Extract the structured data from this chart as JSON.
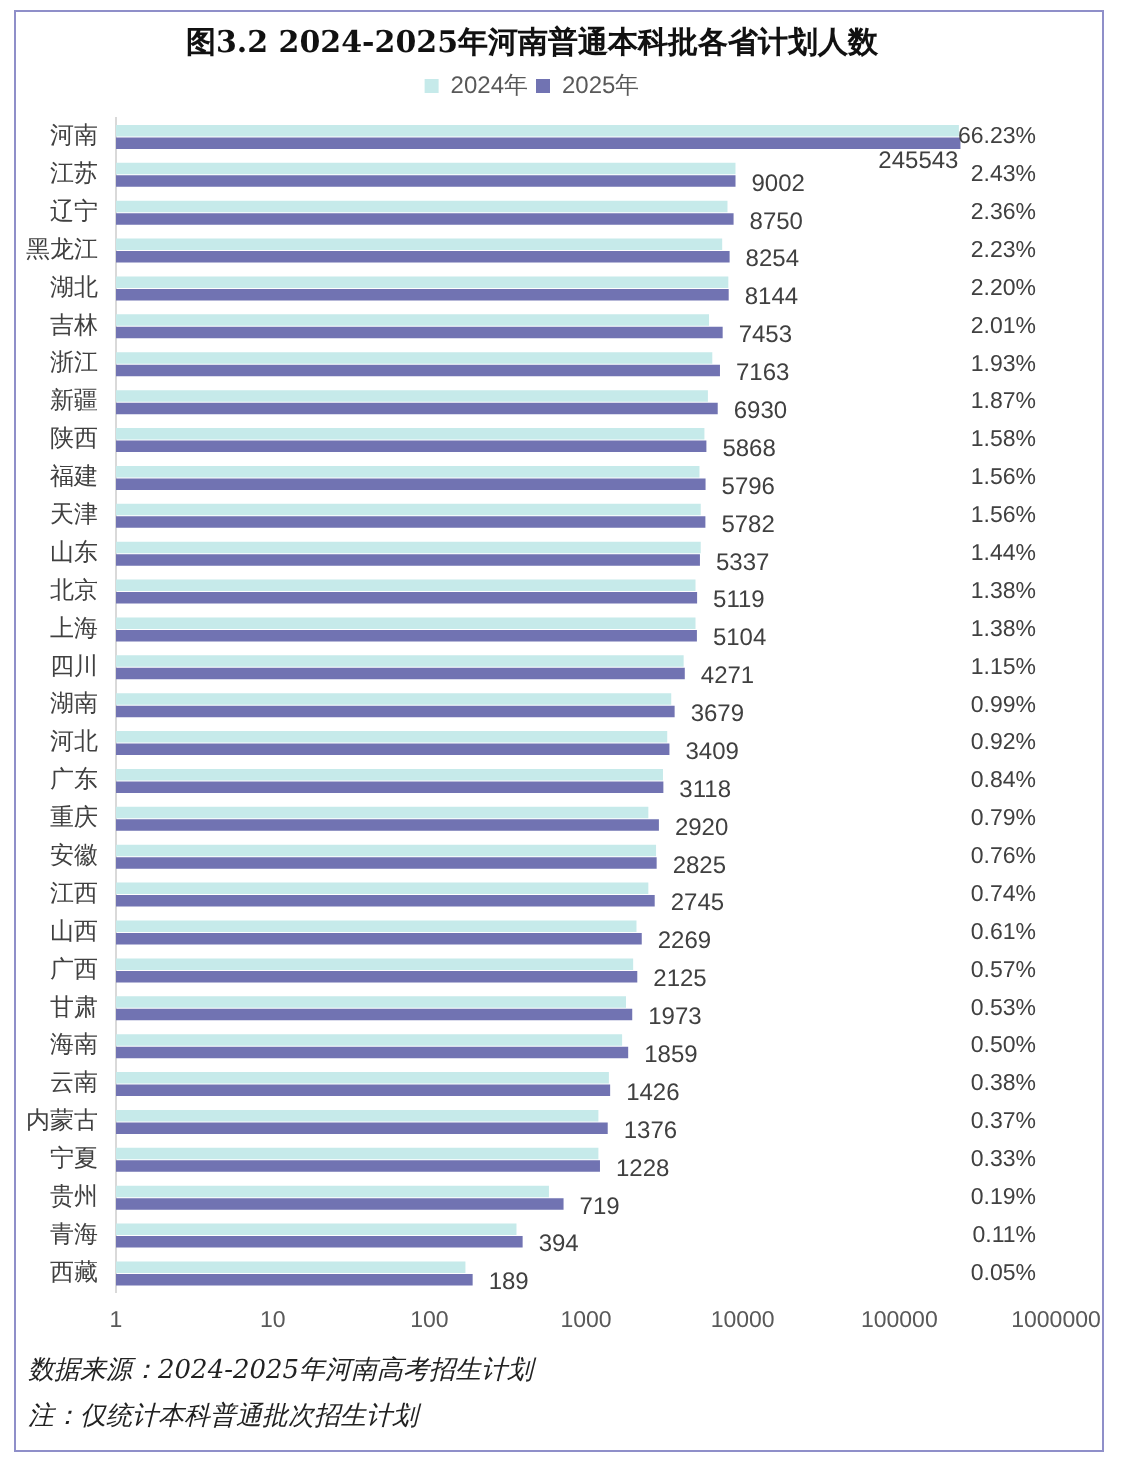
{
  "chart_data": {
    "type": "bar",
    "orientation": "horizontal",
    "title": "图3.2 2024-2025年河南普通本科批各省计划人数",
    "categories": [
      "河南",
      "江苏",
      "辽宁",
      "黑龙江",
      "湖北",
      "吉林",
      "浙江",
      "新疆",
      "陕西",
      "福建",
      "天津",
      "山东",
      "北京",
      "上海",
      "四川",
      "湖南",
      "河北",
      "广东",
      "重庆",
      "安徽",
      "江西",
      "山西",
      "广西",
      "甘肃",
      "海南",
      "云南",
      "内蒙古",
      "宁夏",
      "贵州",
      "青海",
      "西藏"
    ],
    "series": [
      {
        "name": "2024年",
        "color": "#c6eaea",
        "values": [
          240000,
          9000,
          8000,
          7400,
          8100,
          6100,
          6400,
          6000,
          5700,
          5300,
          5400,
          5400,
          5000,
          5000,
          4200,
          3500,
          3300,
          3100,
          2500,
          2800,
          2500,
          2100,
          2000,
          1800,
          1700,
          1400,
          1200,
          1200,
          580,
          360,
          170
        ]
      },
      {
        "name": "2025年",
        "color": "#7173b2",
        "values": [
          245543,
          9002,
          8750,
          8254,
          8144,
          7453,
          7163,
          6930,
          5868,
          5796,
          5782,
          5337,
          5119,
          5104,
          4271,
          3679,
          3409,
          3118,
          2920,
          2825,
          2745,
          2269,
          2125,
          1973,
          1859,
          1426,
          1376,
          1228,
          719,
          394,
          189
        ],
        "value_labels": [
          "245543",
          "9002",
          "8750",
          "8254",
          "8144",
          "7453",
          "7163",
          "6930",
          "5868",
          "5796",
          "5782",
          "5337",
          "5119",
          "5104",
          "4271",
          "3679",
          "3409",
          "3118",
          "2920",
          "2825",
          "2745",
          "2269",
          "2125",
          "1973",
          "1859",
          "1426",
          "1376",
          "1228",
          "719",
          "394",
          "189"
        ]
      }
    ],
    "log": "x",
    "xlim": [
      1,
      1000000
    ],
    "xticks": [
      1,
      10,
      100,
      1000,
      10000,
      100000,
      1000000
    ],
    "grid": false,
    "legend": "top",
    "annotations": [
      "66.23%",
      "2.43%",
      "2.36%",
      "2.23%",
      "2.20%",
      "2.01%",
      "1.93%",
      "1.87%",
      "1.58%",
      "1.56%",
      "1.56%",
      "1.44%",
      "1.38%",
      "1.38%",
      "1.15%",
      "0.99%",
      "0.92%",
      "0.84%",
      "0.79%",
      "0.76%",
      "0.74%",
      "0.61%",
      "0.57%",
      "0.53%",
      "0.50%",
      "0.38%",
      "0.37%",
      "0.33%",
      "0.19%",
      "0.11%",
      "0.05%",
      "数据来源：2024-2025年河南高考招生计划",
      "注：仅统计本科普通批次招生计划"
    ]
  }
}
